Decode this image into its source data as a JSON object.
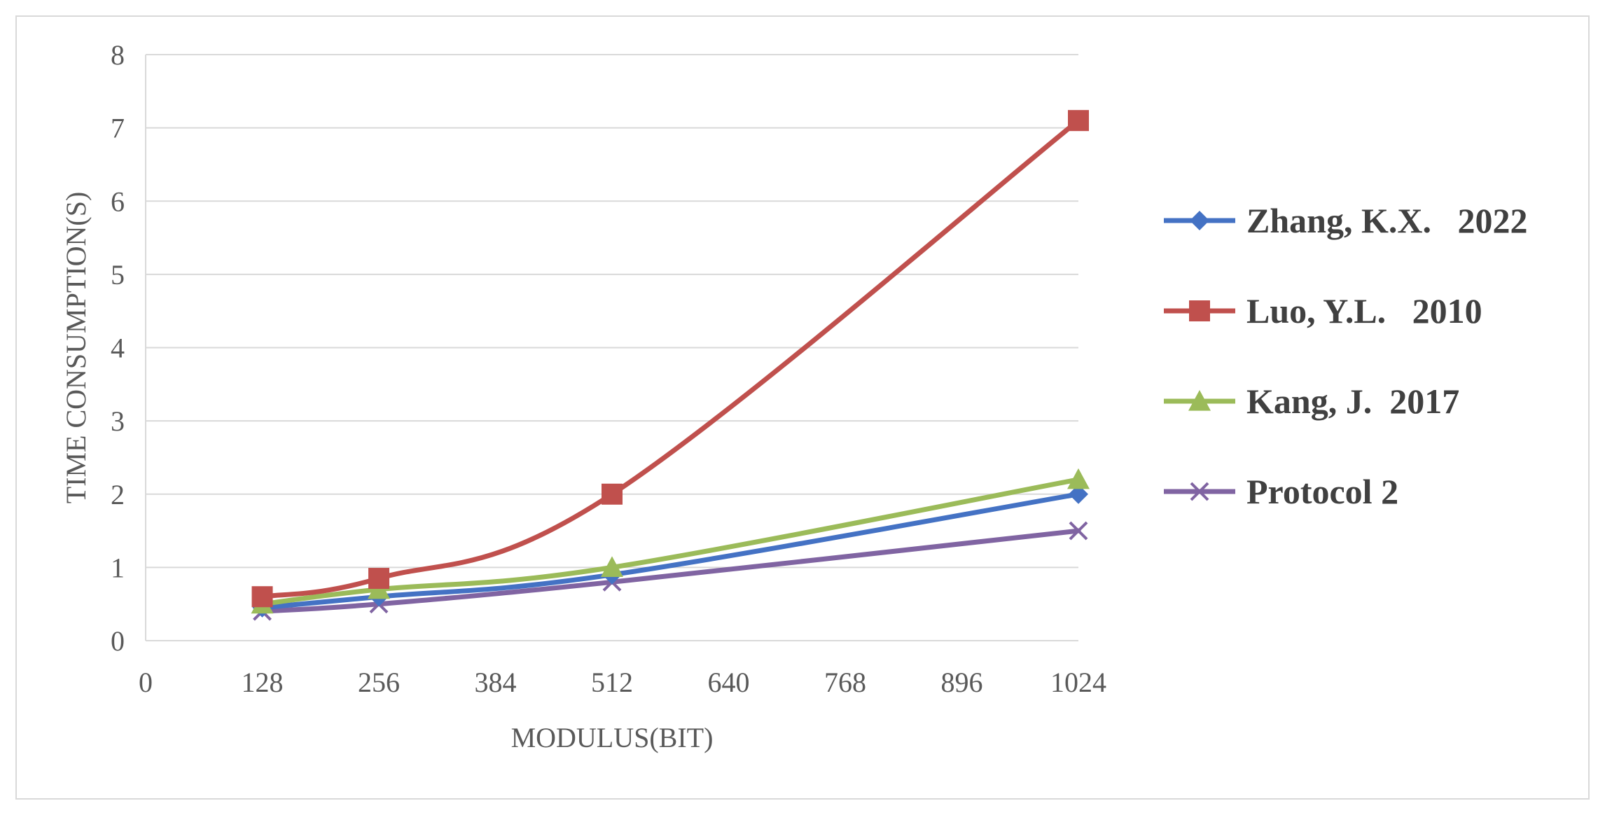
{
  "chart_data": {
    "type": "line",
    "title": "",
    "xlabel": "MODULUS(BIT)",
    "ylabel": "TIME CONSUMPTION(S)",
    "xlim": [
      0,
      1024
    ],
    "ylim": [
      0,
      8
    ],
    "xticks": [
      0,
      128,
      256,
      384,
      512,
      640,
      768,
      896,
      1024
    ],
    "yticks": [
      0,
      1,
      2,
      3,
      4,
      5,
      6,
      7,
      8
    ],
    "grid": "horizontal",
    "legend_position": "right",
    "series": [
      {
        "name": "Zhang, K.X.   2022",
        "color": "#4472c4",
        "marker": "diamond",
        "x": [
          128,
          256,
          512,
          1024
        ],
        "y": [
          0.45,
          0.6,
          0.9,
          2.0
        ]
      },
      {
        "name": "Luo, Y.L.   2010",
        "color": "#c0504d",
        "marker": "square",
        "x": [
          128,
          256,
          512,
          1024
        ],
        "y": [
          0.6,
          0.85,
          2.0,
          7.1
        ]
      },
      {
        "name": "Kang, J.  2017",
        "color": "#9bbb59",
        "marker": "triangle",
        "x": [
          128,
          256,
          512,
          1024
        ],
        "y": [
          0.5,
          0.7,
          1.0,
          2.2
        ]
      },
      {
        "name": "Protocol 2",
        "color": "#8064a2",
        "marker": "x",
        "x": [
          128,
          256,
          512,
          1024
        ],
        "y": [
          0.4,
          0.5,
          0.8,
          1.5
        ]
      }
    ]
  }
}
